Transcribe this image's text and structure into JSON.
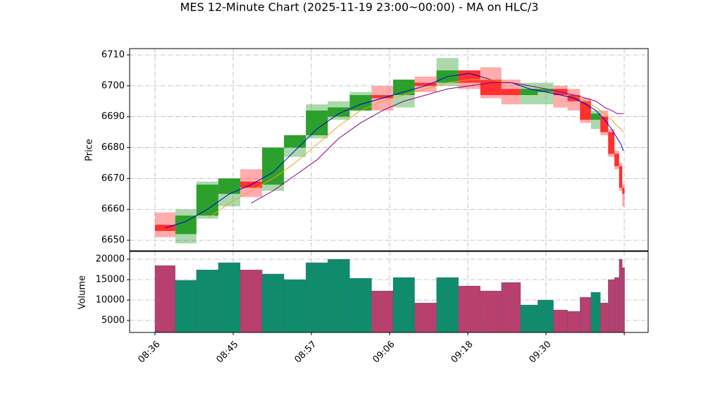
{
  "chart_data": {
    "type": "candlestick",
    "title": "MES 12-Minute Chart (2025-11-19 23:00~00:00) - MA on HLC/3",
    "ylabel": "Price",
    "volume_ylabel": "Volume",
    "x": [
      0.13,
      0.39,
      0.67,
      0.95,
      1.23,
      1.51,
      1.79,
      2.07,
      2.35,
      2.63,
      2.91,
      3.18,
      3.46,
      3.74,
      4.02,
      4.3,
      4.56,
      4.79,
      5.0,
      5.19,
      5.36,
      5.51,
      5.64,
      5.75,
      5.84,
      5.91,
      5.96,
      5.99
    ],
    "open": [
      6655,
      6652,
      6658,
      6665,
      6669,
      6668,
      6680,
      6684,
      6690,
      6692,
      6697,
      6697,
      6701,
      6701,
      6705,
      6702,
      6699,
      6697,
      6698,
      6699,
      6697,
      6695,
      6689,
      6690,
      6685,
      6678,
      6674,
      6667
    ],
    "high": [
      6659,
      6660,
      6669,
      6670,
      6673,
      6680,
      6684,
      6694,
      6695,
      6698,
      6700,
      6702,
      6703,
      6709,
      6705,
      6706,
      6702,
      6701,
      6701,
      6700,
      6699,
      6696,
      6692,
      6692,
      6686,
      6679,
      6675,
      6668
    ],
    "low": [
      6651,
      6649,
      6657,
      6661,
      6664,
      6666,
      6677,
      6683,
      6689,
      6692,
      6692,
      6693,
      6698,
      6700,
      6699,
      6696,
      6694,
      6694,
      6694,
      6693,
      6692,
      6688,
      6686,
      6684,
      6677,
      6673,
      6666,
      6661
    ],
    "close": [
      6653,
      6658,
      6668,
      6670,
      6667,
      6680,
      6684,
      6692,
      6693,
      6697,
      6696,
      6702,
      6700,
      6705,
      6701,
      6697,
      6697,
      6699,
      6699,
      6697,
      6695,
      6689,
      6691,
      6685,
      6678,
      6674,
      6667,
      6665
    ],
    "volume": [
      18450,
      14830,
      17400,
      19140,
      17400,
      16380,
      15000,
      19140,
      20000,
      15340,
      12240,
      15520,
      9300,
      15520,
      13450,
      12240,
      14310,
      8800,
      10000,
      7590,
      7240,
      10690,
      11900,
      9310,
      15000,
      15520,
      20000,
      17930
    ],
    "ma_lines": [
      {
        "color": "#0000cc",
        "values": [
          6654,
          6656,
          6660,
          6665,
          6668,
          6672,
          6679,
          6686,
          6691,
          6694,
          6696,
          6698,
          6700,
          6703,
          6704,
          6702,
          6701,
          6699,
          6698,
          6697,
          6696,
          6694,
          6692,
          6689,
          6686,
          6683,
          6681,
          6679
        ]
      },
      {
        "color": "#f0a020",
        "values": [
          null,
          null,
          6657,
          6662,
          6666,
          6670,
          6675,
          6681,
          6687,
          6692,
          6695,
          6697,
          6699,
          6701,
          6702,
          6702,
          6701,
          6700,
          6699,
          6698,
          6697,
          6695,
          6693,
          6691,
          6689,
          6687,
          6686,
          6685
        ]
      },
      {
        "color": "#880088",
        "values": [
          null,
          null,
          null,
          null,
          6662,
          6666,
          6671,
          6676,
          6683,
          6688,
          6692,
          6695,
          6697,
          6699,
          6700,
          6701,
          6701,
          6700,
          6699,
          6698,
          6697,
          6696,
          6695,
          6693,
          6692,
          6691,
          6691,
          6691
        ]
      }
    ],
    "up_color": "#2ca02c",
    "down_color": "#ff3030",
    "volume_up_color": "#108c6c",
    "volume_down_color": "#b8406c",
    "xlim": [
      -0.324,
      6.306
    ],
    "xticks": [
      {
        "value": 0,
        "label": "08:36"
      },
      {
        "value": 1,
        "label": "08:45"
      },
      {
        "value": 2,
        "label": "08:57"
      },
      {
        "value": 3,
        "label": "09:06"
      },
      {
        "value": 4,
        "label": "09:18"
      },
      {
        "value": 5,
        "label": "09:30"
      },
      {
        "value": 6,
        "label": null
      }
    ],
    "ylim": [
      6646.6,
      6712.05
    ],
    "yticks": [
      6650,
      6660,
      6670,
      6680,
      6690,
      6700,
      6710
    ],
    "volume_ylim": [
      2070,
      21900
    ],
    "volume_yticks": [
      5000,
      10000,
      15000,
      20000
    ],
    "grid": true
  }
}
